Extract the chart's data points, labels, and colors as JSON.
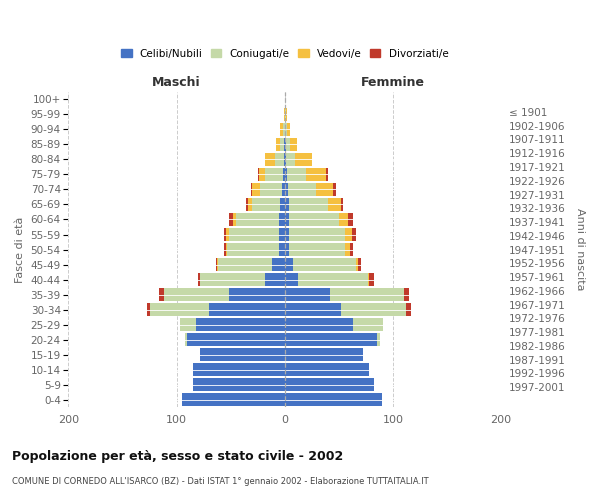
{
  "age_groups_bottom_to_top": [
    "0-4",
    "5-9",
    "10-14",
    "15-19",
    "20-24",
    "25-29",
    "30-34",
    "35-39",
    "40-44",
    "45-49",
    "50-54",
    "55-59",
    "60-64",
    "65-69",
    "70-74",
    "75-79",
    "80-84",
    "85-89",
    "90-94",
    "95-99",
    "100+"
  ],
  "birth_years_bottom_to_top": [
    "1997-2001",
    "1992-1996",
    "1987-1991",
    "1982-1986",
    "1977-1981",
    "1972-1976",
    "1967-1971",
    "1962-1966",
    "1957-1961",
    "1952-1956",
    "1947-1951",
    "1942-1946",
    "1937-1941",
    "1932-1936",
    "1927-1931",
    "1922-1926",
    "1917-1921",
    "1912-1916",
    "1907-1911",
    "1902-1906",
    "≤ 1901"
  ],
  "maschi": {
    "celibi": [
      95,
      85,
      85,
      78,
      90,
      82,
      70,
      52,
      18,
      12,
      5,
      5,
      5,
      4,
      3,
      2,
      1,
      1,
      0,
      0,
      0
    ],
    "coniugati": [
      0,
      0,
      0,
      0,
      2,
      15,
      55,
      60,
      60,
      50,
      48,
      47,
      40,
      26,
      20,
      16,
      8,
      3,
      2,
      0,
      0
    ],
    "vedovi": [
      0,
      0,
      0,
      0,
      0,
      0,
      0,
      0,
      0,
      1,
      1,
      2,
      3,
      4,
      7,
      6,
      9,
      4,
      2,
      1,
      0
    ],
    "divorziati": [
      0,
      0,
      0,
      0,
      0,
      0,
      2,
      4,
      2,
      1,
      2,
      2,
      4,
      2,
      1,
      1,
      0,
      0,
      0,
      0,
      0
    ]
  },
  "femmine": {
    "nubili": [
      90,
      82,
      78,
      72,
      85,
      63,
      52,
      42,
      12,
      8,
      4,
      4,
      4,
      4,
      3,
      2,
      1,
      1,
      0,
      0,
      0
    ],
    "coniugate": [
      0,
      0,
      0,
      0,
      3,
      28,
      60,
      68,
      65,
      58,
      52,
      52,
      46,
      36,
      26,
      18,
      8,
      4,
      2,
      1,
      0
    ],
    "vedove": [
      0,
      0,
      0,
      0,
      0,
      0,
      0,
      0,
      1,
      2,
      4,
      6,
      8,
      12,
      16,
      18,
      16,
      6,
      3,
      1,
      0
    ],
    "divorziate": [
      0,
      0,
      0,
      0,
      0,
      0,
      5,
      5,
      4,
      2,
      3,
      4,
      5,
      2,
      2,
      2,
      0,
      0,
      0,
      0,
      0
    ]
  },
  "colors": {
    "celibi": "#4472C4",
    "coniugati": "#C5D9A8",
    "vedovi": "#F5C040",
    "divorziati": "#C0392B"
  },
  "title": "Popolazione per età, sesso e stato civile - 2002",
  "subtitle": "COMUNE DI CORNEDO ALL'ISARCO (BZ) - Dati ISTAT 1° gennaio 2002 - Elaborazione TUTTAITALIA.IT",
  "header_left": "Maschi",
  "header_right": "Femmine",
  "ylabel_left": "Fasce di età",
  "ylabel_right": "Anni di nascita",
  "xlim": 200,
  "legend_labels": [
    "Celibi/Nubili",
    "Coniugati/e",
    "Vedovi/e",
    "Divorziati/e"
  ]
}
